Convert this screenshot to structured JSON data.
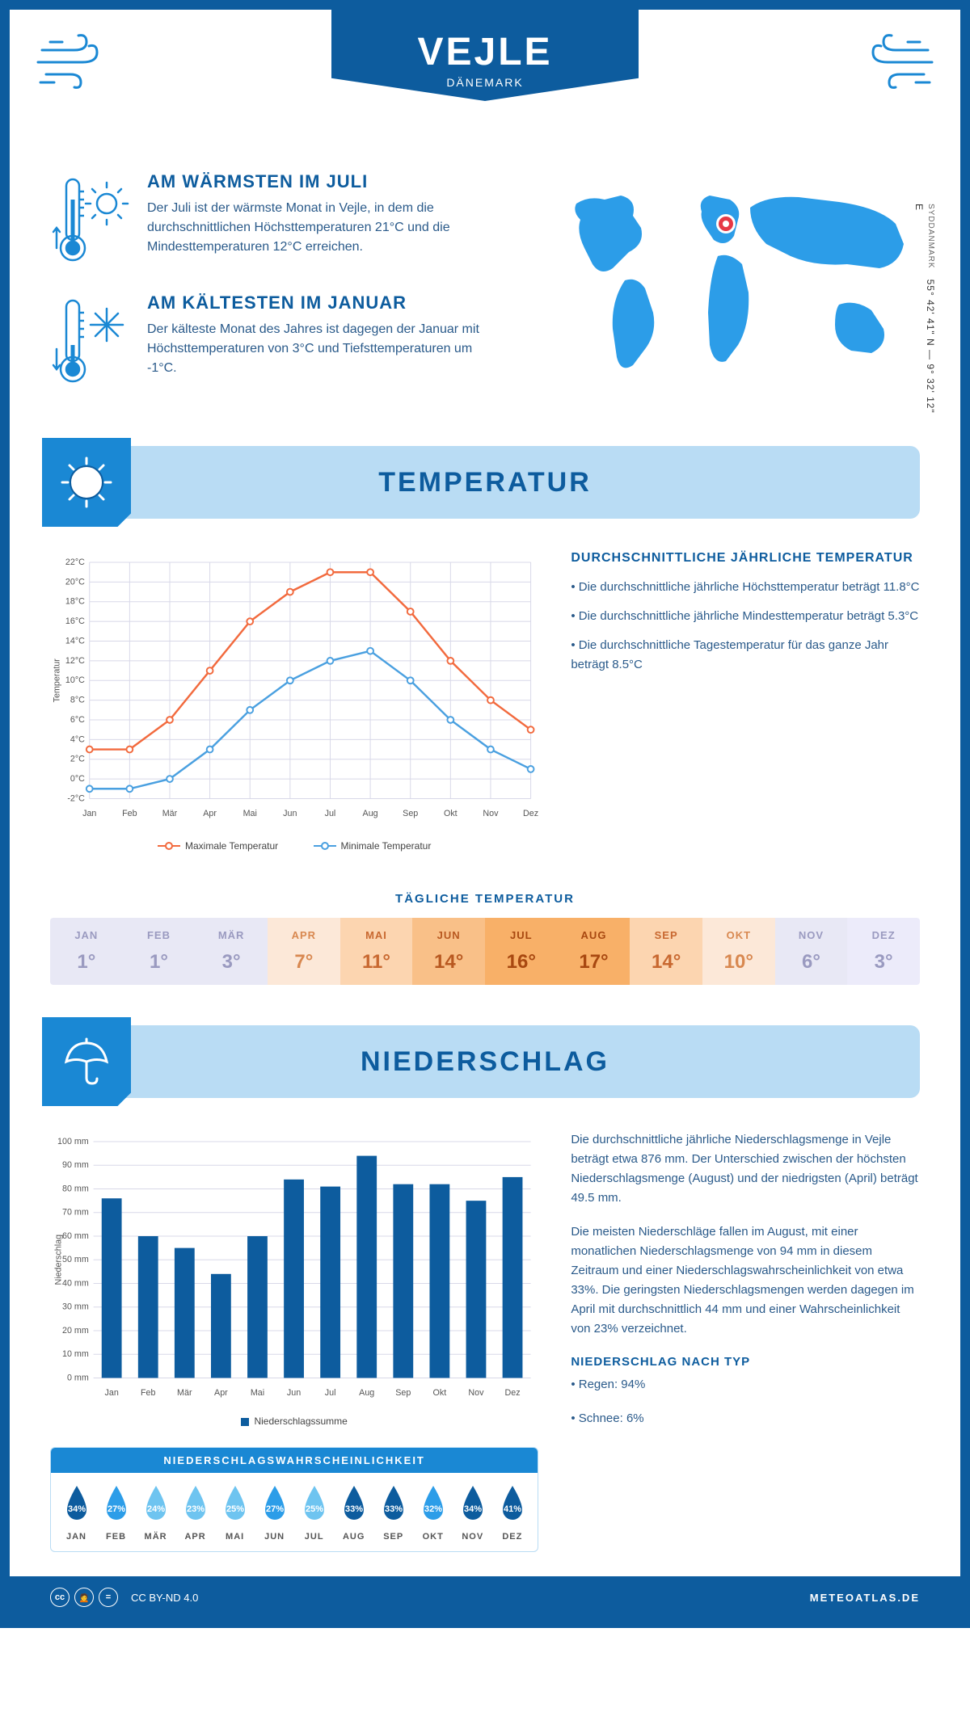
{
  "header": {
    "city": "VEJLE",
    "country": "DÄNEMARK"
  },
  "colors": {
    "primary": "#0d5c9e",
    "light_blue": "#b9dcf4",
    "mid_blue": "#1a88d4",
    "bright_blue": "#2c9de8",
    "max_line": "#f26a3e",
    "min_line": "#4aa0e0",
    "bar": "#0d5c9e",
    "grid": "#d8d8e8"
  },
  "warmest": {
    "title": "AM WÄRMSTEN IM JULI",
    "text": "Der Juli ist der wärmste Monat in Vejle, in dem die durchschnittlichen Höchsttemperaturen 21°C und die Mindesttemperaturen 12°C erreichen."
  },
  "coldest": {
    "title": "AM KÄLTESTEN IM JANUAR",
    "text": "Der kälteste Monat des Jahres ist dagegen der Januar mit Höchsttemperaturen von 3°C und Tiefsttemperaturen um -1°C."
  },
  "coords": {
    "region": "SYDDANMARK",
    "lat": "55° 42' 41\" N",
    "lon": "9° 32' 12\" E"
  },
  "temp_section": {
    "title": "TEMPERATUR"
  },
  "temp_chart": {
    "type": "line",
    "months": [
      "Jan",
      "Feb",
      "Mär",
      "Apr",
      "Mai",
      "Jun",
      "Jul",
      "Aug",
      "Sep",
      "Okt",
      "Nov",
      "Dez"
    ],
    "max_temp": [
      3,
      3,
      6,
      11,
      16,
      19,
      21,
      21,
      17,
      12,
      8,
      5
    ],
    "min_temp": [
      -1,
      -1,
      0,
      3,
      7,
      10,
      12,
      13,
      10,
      6,
      3,
      1
    ],
    "ylim": [
      -2,
      22
    ],
    "ytick_step": 2,
    "ylabel": "Temperatur",
    "legend_max": "Maximale Temperatur",
    "legend_min": "Minimale Temperatur",
    "y_unit": "°C"
  },
  "temp_side": {
    "title": "DURCHSCHNITTLICHE JÄHRLICHE TEMPERATUR",
    "bullets": [
      "• Die durchschnittliche jährliche Höchsttemperatur beträgt 11.8°C",
      "• Die durchschnittliche jährliche Mindesttemperatur beträgt 5.3°C",
      "• Die durchschnittliche Tagestemperatur für das ganze Jahr beträgt 8.5°C"
    ]
  },
  "daily": {
    "title": "TÄGLICHE TEMPERATUR",
    "months": [
      "JAN",
      "FEB",
      "MÄR",
      "APR",
      "MAI",
      "JUN",
      "JUL",
      "AUG",
      "SEP",
      "OKT",
      "NOV",
      "DEZ"
    ],
    "values": [
      "1°",
      "1°",
      "3°",
      "7°",
      "11°",
      "14°",
      "16°",
      "17°",
      "14°",
      "10°",
      "6°",
      "3°"
    ],
    "cell_bg": [
      "#e8e8f5",
      "#e8e8f5",
      "#e8e8f5",
      "#fce8d8",
      "#fcd5b0",
      "#f9c088",
      "#f8b068",
      "#f8b068",
      "#fcd5b0",
      "#fce8d8",
      "#e8e8f5",
      "#ecebfa"
    ],
    "cell_text": [
      "#9a9ac0",
      "#9a9ac0",
      "#9a9ac0",
      "#d88850",
      "#c86830",
      "#b85820",
      "#a84810",
      "#a84810",
      "#c86830",
      "#d88850",
      "#9a9ac0",
      "#9a9ac0"
    ]
  },
  "precip_section": {
    "title": "NIEDERSCHLAG"
  },
  "precip_chart": {
    "type": "bar",
    "months": [
      "Jan",
      "Feb",
      "Mär",
      "Apr",
      "Mai",
      "Jun",
      "Jul",
      "Aug",
      "Sep",
      "Okt",
      "Nov",
      "Dez"
    ],
    "values": [
      76,
      60,
      55,
      44,
      60,
      84,
      81,
      94,
      82,
      82,
      75,
      85
    ],
    "ylim": [
      0,
      100
    ],
    "ytick_step": 10,
    "ylabel": "Niederschlag",
    "y_unit": " mm",
    "legend": "Niederschlagssumme",
    "bar_width": 0.55
  },
  "precip_text": {
    "p1": "Die durchschnittliche jährliche Niederschlagsmenge in Vejle beträgt etwa 876 mm. Der Unterschied zwischen der höchsten Niederschlagsmenge (August) und der niedrigsten (April) beträgt 49.5 mm.",
    "p2": "Die meisten Niederschläge fallen im August, mit einer monatlichen Niederschlagsmenge von 94 mm in diesem Zeitraum und einer Niederschlagswahrscheinlichkeit von etwa 33%. Die geringsten Niederschlagsmengen werden dagegen im April mit durchschnittlich 44 mm und einer Wahrscheinlichkeit von 23% verzeichnet.",
    "type_title": "NIEDERSCHLAG NACH TYP",
    "rain": "• Regen: 94%",
    "snow": "• Schnee: 6%"
  },
  "prob": {
    "title": "NIEDERSCHLAGSWAHRSCHEINLICHKEIT",
    "months": [
      "JAN",
      "FEB",
      "MÄR",
      "APR",
      "MAI",
      "JUN",
      "JUL",
      "AUG",
      "SEP",
      "OKT",
      "NOV",
      "DEZ"
    ],
    "values": [
      "34%",
      "27%",
      "24%",
      "23%",
      "25%",
      "27%",
      "25%",
      "33%",
      "33%",
      "32%",
      "34%",
      "41%"
    ],
    "drop_colors": [
      "#0d5c9e",
      "#2c9de8",
      "#6ec4f0",
      "#6ec4f0",
      "#6ec4f0",
      "#2c9de8",
      "#6ec4f0",
      "#0d5c9e",
      "#0d5c9e",
      "#2c9de8",
      "#0d5c9e",
      "#0d5c9e"
    ]
  },
  "footer": {
    "license": "CC BY-ND 4.0",
    "site": "METEOATLAS.DE"
  }
}
